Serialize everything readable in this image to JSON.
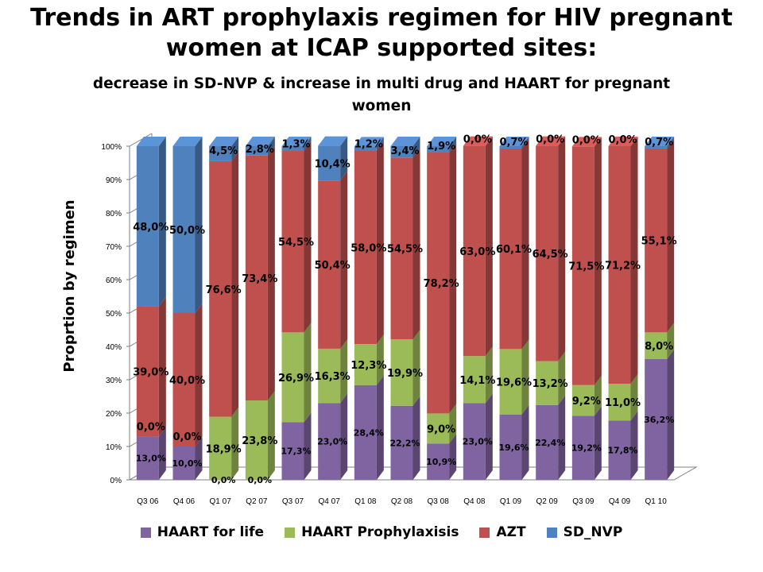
{
  "title_lines": [
    "Trends in ART prophylaxis regimen for HIV pregnant",
    "women at ICAP supported sites:"
  ],
  "subtitle_lines": [
    "decrease in SD-NVP & increase in multi drug and HAART for pregnant",
    "women"
  ],
  "colors": {
    "HAART for life": "#8064A2",
    "HAART Prophylaxisis": "#9BBB59",
    "AZT": "#C0504D",
    "SD_NVP": "#4F81BD"
  },
  "chart_data": {
    "type": "bar",
    "stacked": true,
    "percent_stacked": true,
    "ylabel": "Proprtion by regimen",
    "ylim": [
      0,
      100
    ],
    "y_ticks": [
      "0%",
      "10%",
      "20%",
      "30%",
      "40%",
      "50%",
      "60%",
      "70%",
      "80%",
      "90%",
      "100%"
    ],
    "grid": false,
    "legend_position": "bottom",
    "categories": [
      "Q3 06",
      "Q4 06",
      "Q1 07",
      "Q2 07",
      "Q3 07",
      "Q4 07",
      "Q1 08",
      "Q2 08",
      "Q3 08",
      "Q4 08",
      "Q1 09",
      "Q2 09",
      "Q3 09",
      "Q4 09",
      "Q1 10"
    ],
    "series": [
      {
        "name": "HAART for life",
        "values": [
          13.0,
          10.0,
          0.0,
          0.0,
          17.3,
          23.0,
          28.4,
          22.2,
          10.9,
          23.0,
          19.6,
          22.4,
          19.2,
          17.8,
          36.2
        ],
        "labels": [
          "13,0%",
          "10,0%",
          "0,0%",
          "0,0%",
          "17,3%",
          "23,0%",
          "28,4%",
          "22,2%",
          "10,9%",
          "23,0%",
          "19,6%",
          "22,4%",
          "19,2%",
          "17,8%",
          "36,2%"
        ]
      },
      {
        "name": "HAART Prophylaxisis",
        "values": [
          0.0,
          0.0,
          18.9,
          23.8,
          26.9,
          16.3,
          12.3,
          19.9,
          9.0,
          14.1,
          19.6,
          13.2,
          9.2,
          11.0,
          8.0
        ],
        "labels": [
          "0,0%",
          "0,0%",
          "18,9%",
          "23,8%",
          "26,9%",
          "16,3%",
          "12,3%",
          "19,9%",
          "9,0%",
          "14,1%",
          "19,6%",
          "13,2%",
          "9,2%",
          "11,0%",
          "8,0%"
        ]
      },
      {
        "name": "AZT",
        "values": [
          39.0,
          40.0,
          76.6,
          73.4,
          54.5,
          50.4,
          58.0,
          54.5,
          78.2,
          63.0,
          60.1,
          64.5,
          71.5,
          71.2,
          55.1
        ],
        "labels": [
          "39,0%",
          "40,0%",
          "76,6%",
          "73,4%",
          "54,5%",
          "50,4%",
          "58,0%",
          "54,5%",
          "78,2%",
          "63,0%",
          "60,1%",
          "64,5%",
          "71,5%",
          "71,2%",
          "55,1%"
        ]
      },
      {
        "name": "SD_NVP",
        "values": [
          48.0,
          50.0,
          4.5,
          2.8,
          1.3,
          10.4,
          1.2,
          3.4,
          1.9,
          0.0,
          0.7,
          0.0,
          0.0,
          0.0,
          0.7
        ],
        "labels": [
          "48,0%",
          "50,0%",
          "4,5%",
          "2,8%",
          "1,3%",
          "10,4%",
          "1,2%",
          "3,4%",
          "1,9%",
          "0,0%",
          "0,7%",
          "0,0%",
          "0,0%",
          "0,0%",
          "0,7%"
        ]
      }
    ]
  }
}
